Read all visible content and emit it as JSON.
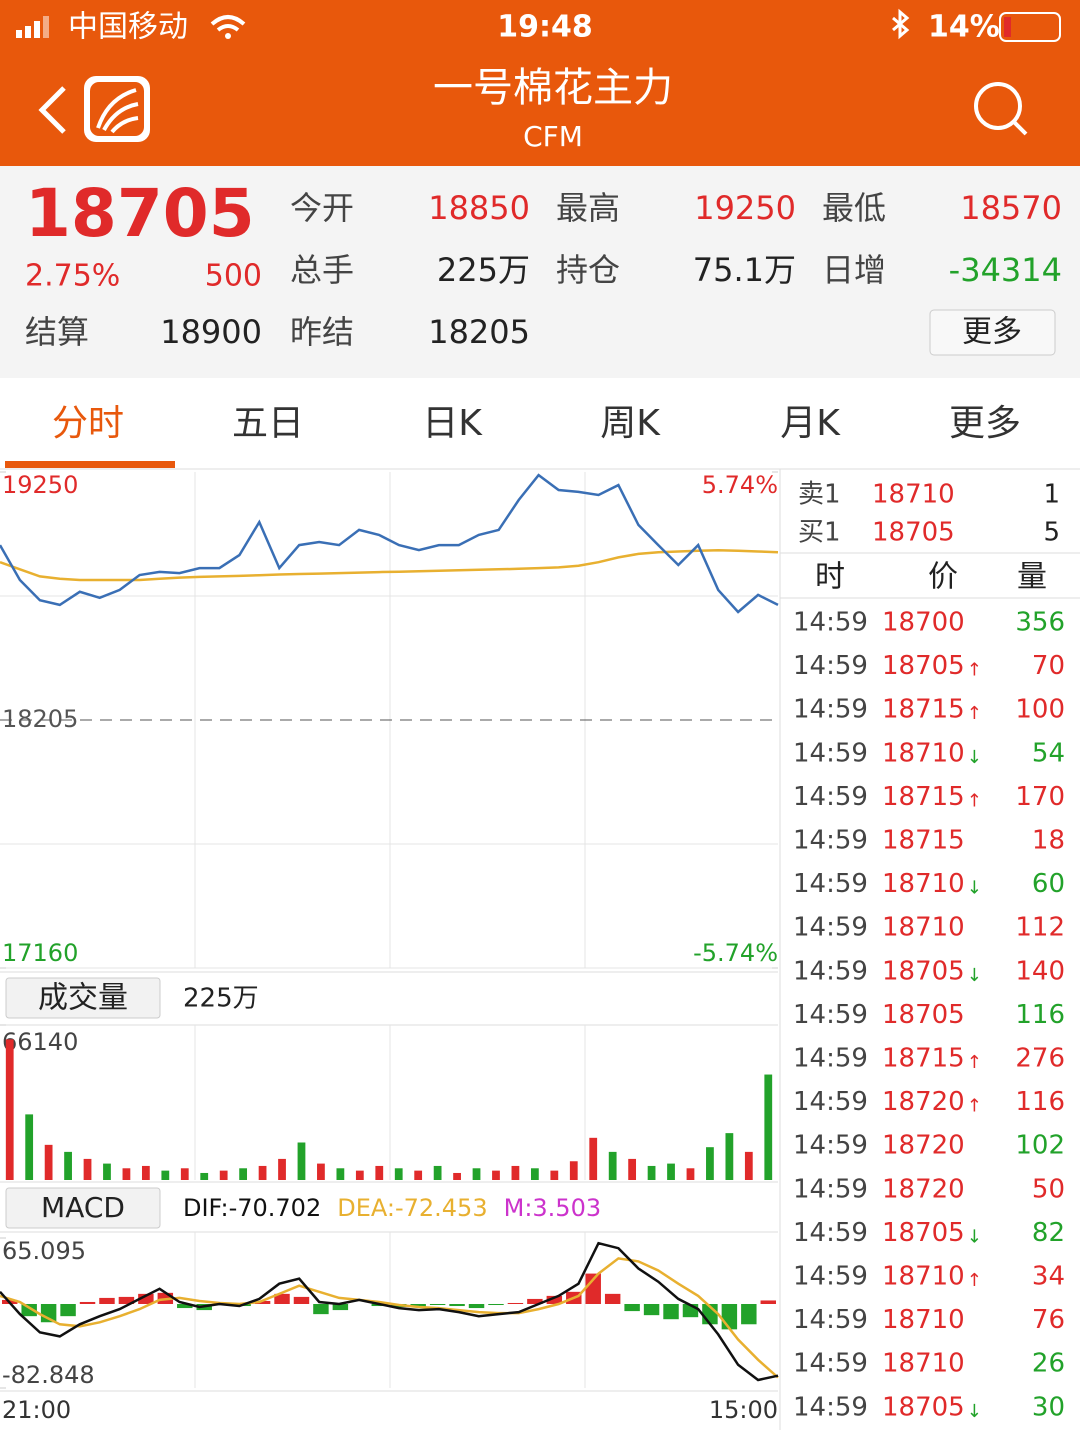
{
  "status": {
    "carrier": "中国移动",
    "time": "19:48",
    "battery": "14%"
  },
  "header": {
    "title": "一号棉花主力",
    "code": "CFM"
  },
  "quote": {
    "price": 18705,
    "change_pct": "2.75%",
    "change": 500,
    "color": "#e02a2a",
    "fields": [
      {
        "label": "今开",
        "value": 18850,
        "color": "#e02a2a"
      },
      {
        "label": "最高",
        "value": 19250,
        "color": "#e02a2a"
      },
      {
        "label": "最低",
        "value": 18570,
        "color": "#e02a2a"
      },
      {
        "label": "总手",
        "value": "225万",
        "color": "#222222"
      },
      {
        "label": "持仓",
        "value": "75.1万",
        "color": "#222222"
      },
      {
        "label": "日增",
        "value": -34314,
        "color": "#22a22a"
      },
      {
        "label": "结算",
        "value": 18900,
        "color": "#222222"
      },
      {
        "label": "昨结",
        "value": 18205,
        "color": "#222222"
      }
    ],
    "more": "更多"
  },
  "tabs": [
    "分时",
    "五日",
    "日K",
    "周K",
    "月K",
    "更多"
  ],
  "chart_data": [
    {
      "type": "line",
      "ylim": [
        17160,
        19250
      ],
      "yticks": [
        19250,
        18205,
        17160
      ],
      "y2lim": [
        -5.74,
        5.74
      ],
      "y2ticks": [
        {
          "value": 5.74,
          "label": "5.74%"
        },
        {
          "value": -5.74,
          "label": "-5.74%"
        }
      ],
      "series": [
        {
          "color": "#3a6fb5",
          "values": [
            18942,
            18795,
            18710,
            18690,
            18745,
            18720,
            18753,
            18816,
            18829,
            18824,
            18845,
            18845,
            18900,
            19039,
            18845,
            18942,
            18955,
            18942,
            19006,
            18985,
            18942,
            18921,
            18942,
            18942,
            18985,
            19006,
            19132,
            19237,
            19174,
            19166,
            19153,
            19195,
            19027,
            18942,
            18858,
            18942,
            18753,
            18660,
            18732,
            18690
          ]
        },
        {
          "color": "#e8b030",
          "values": [
            18870,
            18840,
            18810,
            18800,
            18795,
            18795,
            18795,
            18795,
            18800,
            18805,
            18808,
            18810,
            18812,
            18815,
            18818,
            18820,
            18822,
            18824,
            18826,
            18828,
            18830,
            18832,
            18834,
            18836,
            18838,
            18840,
            18842,
            18845,
            18848,
            18855,
            18870,
            18890,
            18905,
            18912,
            18915,
            18918,
            18920,
            18918,
            18915,
            18912
          ]
        }
      ]
    },
    {
      "type": "bar",
      "label": "成交量",
      "total": "225万",
      "ylim": [
        0,
        66140
      ],
      "yticks": [
        66140
      ],
      "values": [
        60000,
        28000,
        15000,
        12000,
        9000,
        7000,
        5000,
        6000,
        4000,
        5000,
        3000,
        4000,
        5000,
        6000,
        9000,
        16000,
        7000,
        5000,
        4000,
        6000,
        5000,
        4000,
        6000,
        3000,
        5000,
        4000,
        6000,
        5000,
        4000,
        8000,
        18000,
        12000,
        9000,
        6000,
        7000,
        5000,
        14000,
        20000,
        12000,
        45000
      ],
      "colors": [
        "#e02a2a",
        "#22a22a",
        "#e02a2a",
        "#22a22a",
        "#e02a2a",
        "#22a22a",
        "#e02a2a",
        "#e02a2a",
        "#22a22a",
        "#e02a2a",
        "#22a22a",
        "#e02a2a",
        "#22a22a",
        "#e02a2a",
        "#e02a2a",
        "#22a22a",
        "#e02a2a",
        "#22a22a",
        "#e02a2a",
        "#e02a2a",
        "#22a22a",
        "#e02a2a",
        "#22a22a",
        "#e02a2a",
        "#22a22a",
        "#e02a2a",
        "#e02a2a",
        "#22a22a",
        "#e02a2a",
        "#e02a2a",
        "#e02a2a",
        "#22a22a",
        "#e02a2a",
        "#22a22a",
        "#22a22a",
        "#e02a2a",
        "#22a22a",
        "#22a22a",
        "#e02a2a",
        "#22a22a"
      ]
    },
    {
      "type": "macd",
      "label": "MACD",
      "ylim": [
        -82.848,
        65.095
      ],
      "yticks": [
        65.095,
        -82.848
      ],
      "xtick_labels": [
        "21:00",
        "15:00"
      ],
      "series": [
        {
          "name": "DIF:-70.702",
          "color": "#111111",
          "values": [
            12,
            -10,
            -28,
            -32,
            -20,
            -12,
            -5,
            5,
            15,
            2,
            -3,
            0,
            -2,
            5,
            20,
            25,
            2,
            0,
            4,
            0,
            -4,
            -6,
            -5,
            -8,
            -12,
            -10,
            -8,
            0,
            8,
            20,
            60,
            55,
            35,
            22,
            5,
            -5,
            -30,
            -60,
            -75,
            -70.702
          ]
        },
        {
          "name": "DEA:-72.453",
          "color": "#e8b030",
          "values": [
            8,
            2,
            -10,
            -20,
            -22,
            -18,
            -12,
            -5,
            4,
            6,
            3,
            1,
            0,
            2,
            10,
            18,
            12,
            6,
            4,
            2,
            -1,
            -3,
            -4,
            -6,
            -8,
            -9,
            -9,
            -5,
            0,
            8,
            30,
            45,
            42,
            33,
            20,
            8,
            -10,
            -35,
            -55,
            -72.453
          ]
        },
        {
          "name": "M:3.503",
          "color": "#cc33cc",
          "values": [
            4,
            -12,
            -18,
            -12,
            2,
            6,
            7,
            10,
            11,
            -4,
            -6,
            -1,
            -2,
            3,
            10,
            7,
            -10,
            -6,
            0,
            -2,
            -3,
            -3,
            -1,
            -2,
            -4,
            -1,
            1,
            5,
            8,
            12,
            30,
            10,
            -7,
            -11,
            -15,
            -13,
            -20,
            -25,
            -20,
            3.503
          ]
        }
      ]
    }
  ],
  "book": {
    "levels": [
      {
        "side": "卖1",
        "price": 18710,
        "volume": 1
      },
      {
        "side": "买1",
        "price": 18705,
        "volume": 5
      }
    ],
    "head": [
      "时",
      "价",
      "量"
    ],
    "rows": [
      {
        "time": "14:59",
        "price": 18700,
        "volume": 356,
        "color": "#22a22a"
      },
      {
        "time": "14:59",
        "price": 18705,
        "arrow": "↑",
        "volume": 70,
        "color": "#e02a2a"
      },
      {
        "time": "14:59",
        "price": 18715,
        "arrow": "↑",
        "volume": 100,
        "color": "#e02a2a"
      },
      {
        "time": "14:59",
        "price": 18710,
        "arrow": "↓",
        "volume": 54,
        "color": "#22a22a"
      },
      {
        "time": "14:59",
        "price": 18715,
        "arrow": "↑",
        "volume": 170,
        "color": "#e02a2a"
      },
      {
        "time": "14:59",
        "price": 18715,
        "volume": 18,
        "color": "#e02a2a"
      },
      {
        "time": "14:59",
        "price": 18710,
        "arrow": "↓",
        "volume": 60,
        "color": "#22a22a"
      },
      {
        "time": "14:59",
        "price": 18710,
        "volume": 112,
        "color": "#e02a2a"
      },
      {
        "time": "14:59",
        "price": 18705,
        "arrow": "↓",
        "volume": 140,
        "color": "#e02a2a"
      },
      {
        "time": "14:59",
        "price": 18705,
        "volume": 116,
        "color": "#22a22a"
      },
      {
        "time": "14:59",
        "price": 18715,
        "arrow": "↑",
        "volume": 276,
        "color": "#e02a2a"
      },
      {
        "time": "14:59",
        "price": 18720,
        "arrow": "↑",
        "volume": 116,
        "color": "#e02a2a"
      },
      {
        "time": "14:59",
        "price": 18720,
        "volume": 102,
        "color": "#22a22a"
      },
      {
        "time": "14:59",
        "price": 18720,
        "volume": 50,
        "color": "#e02a2a"
      },
      {
        "time": "14:59",
        "price": 18705,
        "arrow": "↓",
        "volume": 82,
        "color": "#22a22a"
      },
      {
        "time": "14:59",
        "price": 18710,
        "arrow": "↑",
        "volume": 34,
        "color": "#e02a2a"
      },
      {
        "time": "14:59",
        "price": 18710,
        "volume": 76,
        "color": "#e02a2a"
      },
      {
        "time": "14:59",
        "price": 18710,
        "volume": 26,
        "color": "#22a22a"
      },
      {
        "time": "14:59",
        "price": 18705,
        "arrow": "↓",
        "volume": 30,
        "color": "#22a22a"
      }
    ]
  }
}
